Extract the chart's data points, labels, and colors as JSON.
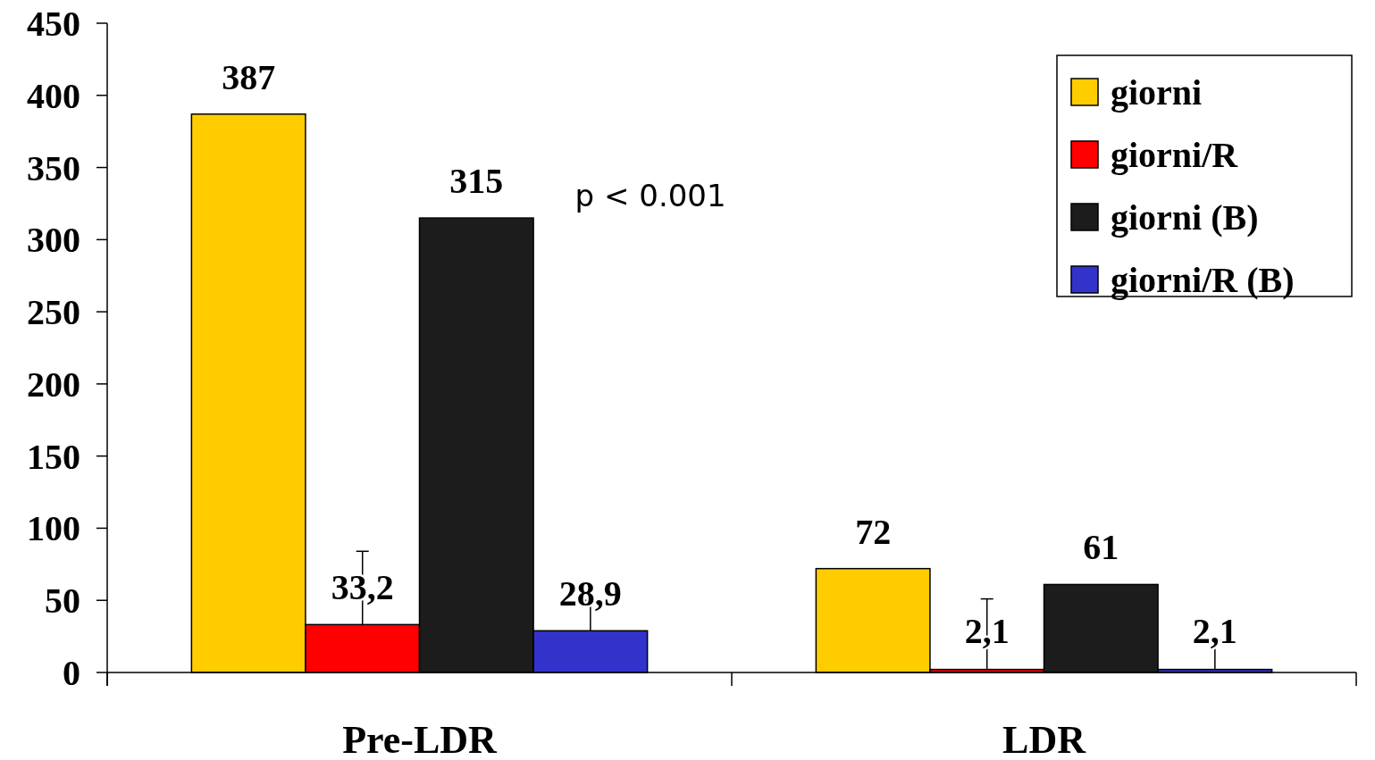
{
  "chart_data": {
    "type": "bar",
    "categories": [
      "Pre-LDR",
      "LDR"
    ],
    "series": [
      {
        "name": "giorni",
        "color": "#ffcc00",
        "values": [
          387,
          72
        ],
        "value_labels": [
          "387",
          "72"
        ]
      },
      {
        "name": "giorni/R",
        "color": "#ff0000",
        "values": [
          33.2,
          2.1
        ],
        "value_labels": [
          "33,2",
          "2,1"
        ],
        "errors": [
          [
            33.2,
            84
          ],
          [
            2.1,
            51
          ]
        ]
      },
      {
        "name": "giorni (B)",
        "color": "#1c1c1c",
        "values": [
          315,
          61
        ],
        "value_labels": [
          "315",
          "61"
        ]
      },
      {
        "name": "giorni/R (B)",
        "color": "#3333cc",
        "values": [
          28.9,
          2.1
        ],
        "value_labels": [
          "28,9",
          "2,1"
        ],
        "errors": [
          [
            28.9,
            50
          ],
          [
            2.1,
            22
          ]
        ]
      }
    ],
    "ylim": [
      0,
      450
    ],
    "yticks": [
      0,
      50,
      100,
      150,
      200,
      250,
      300,
      350,
      400,
      450
    ],
    "legend": "top right",
    "annotations": [
      "p < 0.001"
    ]
  }
}
